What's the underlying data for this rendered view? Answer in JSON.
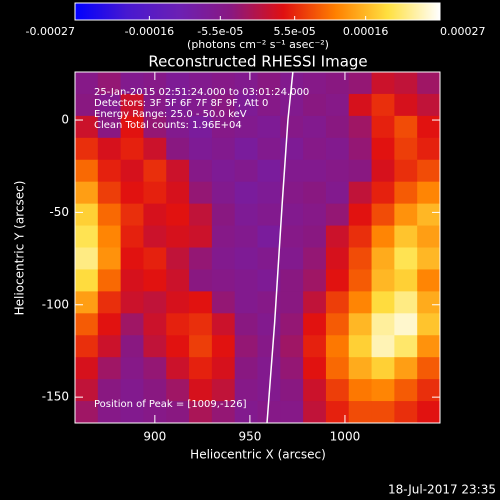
{
  "chart_data": {
    "type": "heatmap",
    "title": "Reconstructed RHESSI Image",
    "xlabel": "Heliocentric X (arcsec)",
    "ylabel": "Heliocentric Y (arcsec)",
    "xlim": [
      858,
      1050
    ],
    "ylim": [
      -164,
      26
    ],
    "xticks": [
      900,
      950,
      1000
    ],
    "yticks": [
      0,
      -50,
      -100,
      -150
    ],
    "zlim": [
      -0.00027,
      0.00027
    ],
    "colorbar_ticks": [
      -0.00027,
      -0.00016,
      {
        "value": -5.5e-05,
        "label": "-5.5e-05"
      },
      {
        "value": 5.5e-05,
        "label": "5.5e-05"
      },
      0.00016,
      0.00027
    ],
    "colorbar_label": "(photons cm⁻² s⁻¹ asec⁻²)",
    "colormap": [
      "#0000ff",
      "#4818d0",
      "#6c20b4",
      "#8a1880",
      "#e01010",
      "#ff8000",
      "#ffe040",
      "#ffffff"
    ],
    "annotations": [
      "25-Jan-2015 02:51:24.000 to 03:01:24.000",
      "Detectors: 3F 5F 6F 7F 8F 9F, Att 0",
      "Energy Range: 25.0 - 50.0 keV",
      "Clean     Total counts: 1.96E+04"
    ],
    "peak_label": "Position of Peak = [1009,-126]",
    "timestamp": "18-Jul-2017 23:35",
    "limb": {
      "color": "#ffffff",
      "x": [
        959,
        963,
        967,
        970,
        972.6
      ],
      "y": [
        -164,
        -110,
        -45,
        0,
        26
      ]
    },
    "z": [
      [
        -5e-05,
        -3e-05,
        -6e-05,
        -5e-05,
        -7e-05,
        -6e-05,
        -5e-05,
        -6e-05,
        -4e-05,
        -6e-05,
        -5e-05,
        -4e-05,
        -3e-05,
        2e-05,
        1e-05,
        -2e-05
      ],
      [
        -4e-05,
        -6e-05,
        2e-05,
        -5e-05,
        -7e-05,
        -6e-05,
        -4e-05,
        -7e-05,
        -5e-05,
        -6e-05,
        -4e-05,
        -5e-05,
        3e-05,
        6e-05,
        3e-05,
        1e-05
      ],
      [
        2e-05,
        -4e-05,
        4e-05,
        -3e-05,
        -6e-05,
        -8e-05,
        -5e-05,
        -6e-05,
        -7e-05,
        -5e-05,
        -6e-05,
        -4e-05,
        -2e-05,
        5e-05,
        8e-05,
        4e-05
      ],
      [
        6e-05,
        3e-05,
        5e-05,
        2e-05,
        -4e-05,
        -7e-05,
        -6e-05,
        -8e-05,
        -6e-05,
        -7e-05,
        -5e-05,
        -6e-05,
        -3e-05,
        4e-05,
        7e-05,
        5e-05
      ],
      [
        0.0001,
        5e-05,
        3e-05,
        6e-05,
        2e-05,
        -5e-05,
        -7e-05,
        -6e-05,
        -8e-05,
        -6e-05,
        -6e-05,
        -5e-05,
        -4e-05,
        3e-05,
        6e-05,
        8e-05
      ],
      [
        0.00014,
        7e-05,
        4e-05,
        5e-05,
        3e-05,
        -3e-05,
        -6e-05,
        -8e-05,
        -7e-05,
        -5e-05,
        -4e-05,
        -6e-05,
        1e-05,
        5e-05,
        9e-05,
        0.00012
      ],
      [
        0.00018,
        0.0001,
        6e-05,
        3e-05,
        4e-05,
        1e-05,
        -4e-05,
        -7e-05,
        -6e-05,
        -6e-05,
        -5e-05,
        -3e-05,
        4e-05,
        8e-05,
        0.00013,
        0.00016
      ],
      [
        0.0002,
        0.00012,
        5e-05,
        2e-05,
        3e-05,
        2e-05,
        -5e-05,
        -6e-05,
        -8e-05,
        -5e-05,
        -4e-05,
        2e-05,
        6e-05,
        0.00012,
        0.00017,
        0.00014
      ],
      [
        0.00022,
        0.00013,
        4e-05,
        5e-05,
        1e-05,
        -3e-05,
        -6e-05,
        -7e-05,
        -6e-05,
        -6e-05,
        -3e-05,
        3e-05,
        8e-05,
        0.00015,
        0.0002,
        0.00016
      ],
      [
        0.00019,
        0.0001,
        3e-05,
        4e-05,
        2e-05,
        -4e-05,
        -5e-05,
        -6e-05,
        -7e-05,
        -4e-05,
        -2e-05,
        4e-05,
        9e-05,
        0.00016,
        0.00018,
        0.00012
      ],
      [
        0.00014,
        6e-05,
        2e-05,
        1e-05,
        3e-05,
        4e-05,
        -3e-05,
        -6e-05,
        -5e-05,
        -4e-05,
        1e-05,
        7e-05,
        0.00012,
        0.00019,
        0.00022,
        0.00015
      ],
      [
        9e-05,
        4e-05,
        -2e-05,
        2e-05,
        5e-05,
        6e-05,
        2e-05,
        -4e-05,
        -6e-05,
        -3e-05,
        4e-05,
        9e-05,
        0.00016,
        0.00023,
        0.00025,
        0.00017
      ],
      [
        6e-05,
        2e-05,
        -4e-05,
        1e-05,
        4e-05,
        7e-05,
        4e-05,
        -3e-05,
        -5e-05,
        -2e-05,
        5e-05,
        0.00011,
        0.00018,
        0.00024,
        0.00021,
        0.00013
      ],
      [
        3e-05,
        -2e-05,
        -5e-05,
        -3e-05,
        2e-05,
        5e-05,
        3e-05,
        -4e-05,
        -6e-05,
        -3e-05,
        4e-05,
        0.0001,
        0.00015,
        0.00018,
        0.00014,
        9e-05
      ],
      [
        1e-05,
        -4e-05,
        -6e-05,
        -4e-05,
        -2e-05,
        3e-05,
        1e-05,
        -5e-05,
        -6e-05,
        -4e-05,
        2e-05,
        7e-05,
        0.00011,
        0.00012,
        9e-05,
        6e-05
      ],
      [
        -2e-05,
        -5e-05,
        -6e-05,
        -5e-05,
        -4e-05,
        -1e-05,
        -3e-05,
        -6e-05,
        -5e-05,
        -5e-05,
        1e-05,
        5e-05,
        8e-05,
        8e-05,
        6e-05,
        4e-05
      ]
    ]
  }
}
